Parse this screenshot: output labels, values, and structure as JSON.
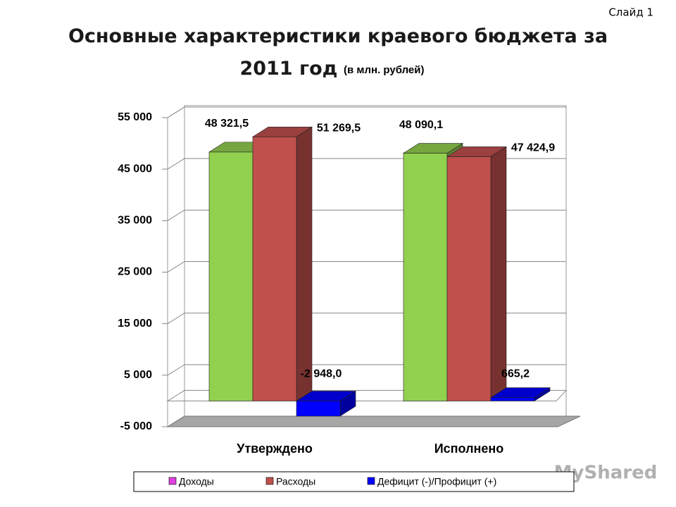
{
  "slide_label": "Слайд 1",
  "watermark": "MyShared",
  "chart_data": {
    "type": "bar3d",
    "title": "Основные характеристики краевого бюджета за 2011 год",
    "subtitle": "(в млн. рублей)",
    "categories": [
      "Утверждено",
      "Исполнено"
    ],
    "series": [
      {
        "name": "Доходы",
        "color": "#92d050",
        "legend_color": "#e040e0",
        "values": [
          48321.5,
          48090.1
        ],
        "value_labels": [
          "48 321,5",
          "48 090,1"
        ]
      },
      {
        "name": "Расходы",
        "color": "#c0504d",
        "values": [
          51269.5,
          47424.9
        ],
        "value_labels": [
          "51 269,5",
          "47 424,9"
        ]
      },
      {
        "name": "Дефицит (-)/Профицит (+)",
        "color": "#0000ff",
        "values": [
          -2948.0,
          665.2
        ],
        "value_labels": [
          "-2 948,0",
          "665,2"
        ]
      }
    ],
    "ylim": [
      -5000,
      55000
    ],
    "yticks": [
      {
        "value": -5000,
        "label": "-5 000"
      },
      {
        "value": 5000,
        "label": "5 000"
      },
      {
        "value": 15000,
        "label": "15 000"
      },
      {
        "value": 25000,
        "label": "25 000"
      },
      {
        "value": 35000,
        "label": "35 000"
      },
      {
        "value": 45000,
        "label": "45 000"
      },
      {
        "value": 55000,
        "label": "55 000"
      }
    ],
    "grid": true,
    "legend": "bottom"
  }
}
